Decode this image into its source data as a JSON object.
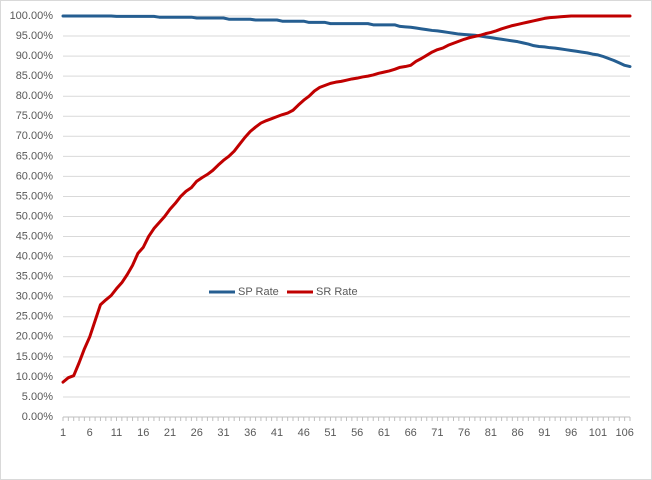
{
  "chart_data": {
    "type": "line",
    "categories": [
      1,
      null,
      null,
      null,
      null,
      6,
      null,
      null,
      null,
      null,
      11,
      null,
      null,
      null,
      null,
      16,
      null,
      null,
      null,
      null,
      21,
      null,
      null,
      null,
      null,
      26,
      null,
      null,
      null,
      null,
      31,
      null,
      null,
      null,
      null,
      36,
      null,
      null,
      null,
      null,
      41,
      null,
      null,
      null,
      null,
      46,
      null,
      null,
      null,
      null,
      51,
      null,
      null,
      null,
      null,
      56,
      null,
      null,
      null,
      null,
      61,
      null,
      null,
      null,
      null,
      66,
      null,
      null,
      null,
      null,
      71,
      null,
      null,
      null,
      null,
      76,
      null,
      null,
      null,
      null,
      81,
      null,
      null,
      null,
      null,
      86,
      null,
      null,
      null,
      null,
      91,
      null,
      null,
      null,
      null,
      96,
      null,
      null,
      null,
      null,
      101,
      null,
      null,
      null,
      null,
      106,
      null
    ],
    "series": [
      {
        "name": "SP Rate",
        "color": "#255e91",
        "values": [
          100,
          100,
          100,
          100,
          100,
          100,
          100,
          100,
          100,
          100,
          99.9,
          99.9,
          99.9,
          99.9,
          99.9,
          99.9,
          99.9,
          99.9,
          99.7,
          99.7,
          99.7,
          99.7,
          99.7,
          99.7,
          99.7,
          99.5,
          99.5,
          99.5,
          99.5,
          99.5,
          99.5,
          99.2,
          99.2,
          99.2,
          99.2,
          99.2,
          99.0,
          99.0,
          99.0,
          99.0,
          99.0,
          98.7,
          98.7,
          98.7,
          98.7,
          98.7,
          98.4,
          98.4,
          98.4,
          98.4,
          98.1,
          98.1,
          98.1,
          98.1,
          98.1,
          98.1,
          98.1,
          98.1,
          97.8,
          97.8,
          97.8,
          97.8,
          97.8,
          97.4,
          97.3,
          97.2,
          97.0,
          96.8,
          96.6,
          96.4,
          96.3,
          96.1,
          95.9,
          95.7,
          95.5,
          95.4,
          95.3,
          95.2,
          95.0,
          94.8,
          94.6,
          94.4,
          94.2,
          94.0,
          93.8,
          93.6,
          93.3,
          93.0,
          92.6,
          92.4,
          92.3,
          92.1,
          92.0,
          91.8,
          91.6,
          91.4,
          91.2,
          91.0,
          90.8,
          90.5,
          90.3,
          89.9,
          89.4,
          88.9,
          88.3,
          87.7,
          87.4
        ]
      },
      {
        "name": "SR Rate",
        "color": "#c00000",
        "values": [
          8.7,
          9.8,
          10.3,
          13.5,
          17,
          20,
          24,
          28,
          29.2,
          30.3,
          32,
          33.5,
          35.5,
          37.8,
          40.8,
          42.3,
          45,
          47,
          48.5,
          50,
          51.8,
          53.3,
          55,
          56.3,
          57.2,
          58.8,
          59.7,
          60.5,
          61.5,
          62.8,
          64,
          65,
          66.3,
          68,
          69.7,
          71.2,
          72.3,
          73.3,
          73.9,
          74.4,
          74.9,
          75.4,
          75.8,
          76.5,
          77.8,
          79,
          80,
          81.3,
          82.2,
          82.7,
          83.2,
          83.5,
          83.7,
          84,
          84.3,
          84.5,
          84.8,
          85,
          85.3,
          85.7,
          86,
          86.3,
          86.7,
          87.2,
          87.4,
          87.7,
          88.7,
          89.4,
          90.2,
          91,
          91.6,
          92,
          92.7,
          93.2,
          93.7,
          94.2,
          94.6,
          94.9,
          95.2,
          95.6,
          95.9,
          96.3,
          96.8,
          97.2,
          97.6,
          97.9,
          98.2,
          98.5,
          98.8,
          99.1,
          99.4,
          99.6,
          99.7,
          99.8,
          99.9,
          100,
          100,
          100,
          100,
          100,
          100,
          100,
          100,
          100,
          100,
          100,
          100
        ]
      }
    ],
    "ylim": [
      0,
      100
    ],
    "yticks": [
      {
        "value": 0,
        "label": "0.00%"
      },
      {
        "value": 5,
        "label": "5.00%"
      },
      {
        "value": 10,
        "label": "10.00%"
      },
      {
        "value": 15,
        "label": "15.00%"
      },
      {
        "value": 20,
        "label": "20.00%"
      },
      {
        "value": 25,
        "label": "25.00%"
      },
      {
        "value": 30,
        "label": "30.00%"
      },
      {
        "value": 35,
        "label": "35.00%"
      },
      {
        "value": 40,
        "label": "40.00%"
      },
      {
        "value": 45,
        "label": "45.00%"
      },
      {
        "value": 50,
        "label": "50.00%"
      },
      {
        "value": 55,
        "label": "55.00%"
      },
      {
        "value": 60,
        "label": "60.00%"
      },
      {
        "value": 65,
        "label": "65.00%"
      },
      {
        "value": 70,
        "label": "70.00%"
      },
      {
        "value": 75,
        "label": "75.00%"
      },
      {
        "value": 80,
        "label": "80.00%"
      },
      {
        "value": 85,
        "label": "85.00%"
      },
      {
        "value": 90,
        "label": "90.00%"
      },
      {
        "value": 95,
        "label": "95.00%"
      },
      {
        "value": 100,
        "label": "100.00%"
      }
    ],
    "grid": true,
    "legend": "center"
  }
}
